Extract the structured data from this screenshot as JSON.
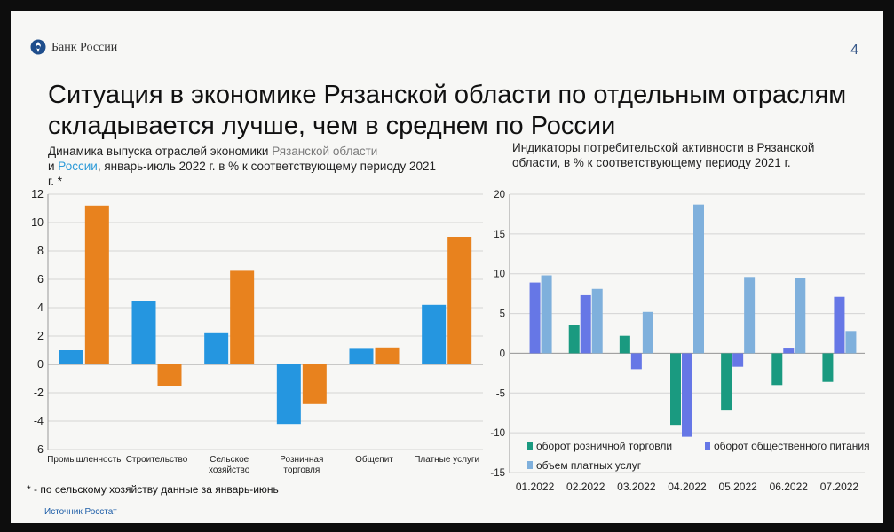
{
  "header": {
    "bank_name": "Банк России",
    "page_number": "4",
    "logo_icon": "bank-of-russia-emblem-icon"
  },
  "title": "Ситуация в экономике Рязанской области по отдельным отраслям складывается лучше, чем в среднем по России",
  "left_chart_subtitle": {
    "part1": "Динамика выпуска отраслей экономики ",
    "region": "Рязанской области",
    "part2": "и ",
    "russia": "России",
    "part3": ", январь-июль 2022 г. в % к соответствующему периоду 2021 г. *"
  },
  "right_chart_subtitle": "Индикаторы потребительской активности в Рязанской области, в % к соответствующему периоду 2021 г.",
  "footnote": "* - по сельскому хозяйству данные за январь-июнь",
  "source": "Источник Росстат",
  "colors": {
    "left_blue": "#2596e0",
    "left_orange": "#e8821e",
    "retail": "#1a9a80",
    "catering": "#6677e6",
    "paid_services": "#7fb0dc"
  },
  "chart_data": [
    {
      "type": "bar",
      "categories": [
        "Промышленность",
        "Строительство",
        "Сельское хозяйство",
        "Розничная торговля",
        "Общепит",
        "Платные услуги"
      ],
      "category_lines": [
        [
          "Промышленность"
        ],
        [
          "Строительство"
        ],
        [
          "Сельское",
          "хозяйство"
        ],
        [
          "Розничная",
          "торговля"
        ],
        [
          "Общепит"
        ],
        [
          "Платные услуги"
        ]
      ],
      "series": [
        {
          "values": [
            1.0,
            4.5,
            2.2,
            -4.2,
            1.1,
            4.2
          ],
          "color": "#2596e0"
        },
        {
          "values": [
            11.2,
            -1.5,
            6.6,
            -2.8,
            1.2,
            9.0
          ],
          "color": "#e8821e"
        }
      ],
      "ylim": [
        -6,
        12
      ],
      "yticks": [
        -6,
        -4,
        -2,
        0,
        2,
        4,
        6,
        8,
        10,
        12
      ],
      "grid": true,
      "legend": "none"
    },
    {
      "type": "bar",
      "categories": [
        "01.2022",
        "02.2022",
        "03.2022",
        "04.2022",
        "05.2022",
        "06.2022",
        "07.2022"
      ],
      "series": [
        {
          "name": "оборот розничной торговли",
          "values": [
            null,
            3.6,
            2.2,
            -9.0,
            -7.1,
            -4.0,
            -3.6
          ],
          "color": "#1a9a80"
        },
        {
          "name": "оборот общественного питания",
          "values": [
            8.9,
            7.3,
            -2.0,
            -10.5,
            -1.7,
            0.6,
            7.1
          ],
          "color": "#6677e6"
        },
        {
          "name": "объем платных услуг",
          "values": [
            9.8,
            8.1,
            5.2,
            18.7,
            9.6,
            9.5,
            2.8
          ],
          "color": "#7fb0dc"
        }
      ],
      "ylim": [
        -15,
        20
      ],
      "yticks": [
        -15,
        -10,
        -5,
        0,
        5,
        10,
        15,
        20
      ],
      "grid": true,
      "legend": "bottom"
    }
  ]
}
